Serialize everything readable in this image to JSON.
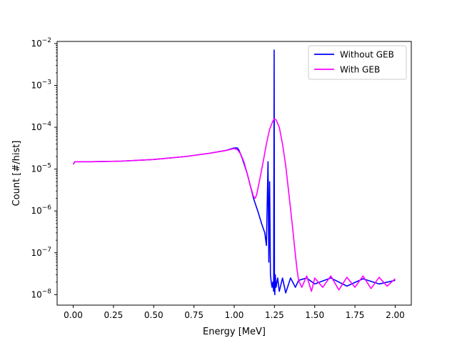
{
  "chart_data": {
    "type": "line",
    "title": "",
    "xlabel": "Energy [MeV]",
    "ylabel": "Count [#/hist]",
    "x_range": [
      -0.1,
      2.1
    ],
    "y_range_log10": [
      -8.25,
      -1.95
    ],
    "y_scale": "log",
    "grid": false,
    "legend_placement": "top-right",
    "x_ticks": [
      0.0,
      0.25,
      0.5,
      0.75,
      1.0,
      1.25,
      1.5,
      1.75,
      2.0
    ],
    "x_tick_labels": [
      "0.00",
      "0.25",
      "0.50",
      "0.75",
      "1.00",
      "1.25",
      "1.50",
      "1.75",
      "2.00"
    ],
    "y_ticks": [
      1e-08,
      1e-07,
      1e-06,
      1e-05,
      0.0001,
      0.001,
      0.01
    ],
    "y_tick_labels": [
      {
        "base": "10",
        "exp": "−8"
      },
      {
        "base": "10",
        "exp": "−7"
      },
      {
        "base": "10",
        "exp": "−6"
      },
      {
        "base": "10",
        "exp": "−5"
      },
      {
        "base": "10",
        "exp": "−4"
      },
      {
        "base": "10",
        "exp": "−3"
      },
      {
        "base": "10",
        "exp": "−2"
      }
    ],
    "series": [
      {
        "name": "Without GEB",
        "color": "#0000ff",
        "x": [
          0.0,
          0.01,
          0.1,
          0.3,
          0.5,
          0.7,
          0.85,
          0.95,
          1.0,
          1.02,
          1.03,
          1.05,
          1.08,
          1.1,
          1.12,
          1.15,
          1.17,
          1.19,
          1.2,
          1.21,
          1.215,
          1.22,
          1.225,
          1.23,
          1.235,
          1.24,
          1.245,
          1.248,
          1.25,
          1.252,
          1.255,
          1.26,
          1.27,
          1.28,
          1.3,
          1.32,
          1.35,
          1.38,
          1.4,
          1.45,
          1.5,
          1.6,
          1.7,
          1.8,
          1.9,
          2.0
        ],
        "y": [
          1.3e-05,
          1.5e-05,
          1.5e-05,
          1.55e-05,
          1.7e-05,
          2e-05,
          2.4e-05,
          2.8e-05,
          3.2e-05,
          3.2e-05,
          2.8e-05,
          1.8e-05,
          8e-06,
          4e-06,
          2e-06,
          9e-07,
          5e-07,
          3e-07,
          1.5e-07,
          1.5e-05,
          6e-08,
          5e-06,
          3e-08,
          2e-08,
          1.5e-08,
          2e-08,
          1.2e-08,
          0.007,
          2e-08,
          1e-08,
          3e-08,
          1.5e-08,
          2.5e-08,
          1.2e-08,
          2.5e-08,
          1.1e-08,
          2.5e-08,
          1.5e-08,
          2.2e-08,
          2.5e-08,
          1.8e-08,
          2.5e-08,
          1.6e-08,
          2.4e-08,
          1.8e-08,
          2.2e-08
        ]
      },
      {
        "name": "With GEB",
        "color": "#ff00ff",
        "x": [
          0.0,
          0.01,
          0.1,
          0.3,
          0.5,
          0.7,
          0.85,
          0.95,
          1.0,
          1.02,
          1.04,
          1.06,
          1.08,
          1.1,
          1.12,
          1.13,
          1.14,
          1.16,
          1.18,
          1.2,
          1.22,
          1.24,
          1.25,
          1.26,
          1.28,
          1.3,
          1.32,
          1.34,
          1.36,
          1.38,
          1.39,
          1.4,
          1.42,
          1.45,
          1.48,
          1.5,
          1.55,
          1.6,
          1.65,
          1.7,
          1.75,
          1.8,
          1.85,
          1.9,
          1.95,
          2.0
        ],
        "y": [
          1.3e-05,
          1.5e-05,
          1.5e-05,
          1.55e-05,
          1.7e-05,
          2e-05,
          2.4e-05,
          2.8e-05,
          3.1e-05,
          2.9e-05,
          2.3e-05,
          1.5e-05,
          8e-06,
          4e-06,
          2.2e-06,
          2e-06,
          2.5e-06,
          6e-06,
          1.5e-05,
          4e-05,
          9e-05,
          0.00014,
          0.00016,
          0.00015,
          0.0001,
          4e-05,
          1.2e-05,
          2.5e-06,
          5e-07,
          9e-08,
          4e-08,
          2.2e-08,
          1.5e-08,
          2.8e-08,
          1.2e-08,
          2.5e-08,
          1.5e-08,
          2.8e-08,
          1.3e-08,
          2.6e-08,
          1.5e-08,
          2.8e-08,
          1.4e-08,
          2.6e-08,
          1.6e-08,
          2.4e-08
        ]
      }
    ]
  }
}
